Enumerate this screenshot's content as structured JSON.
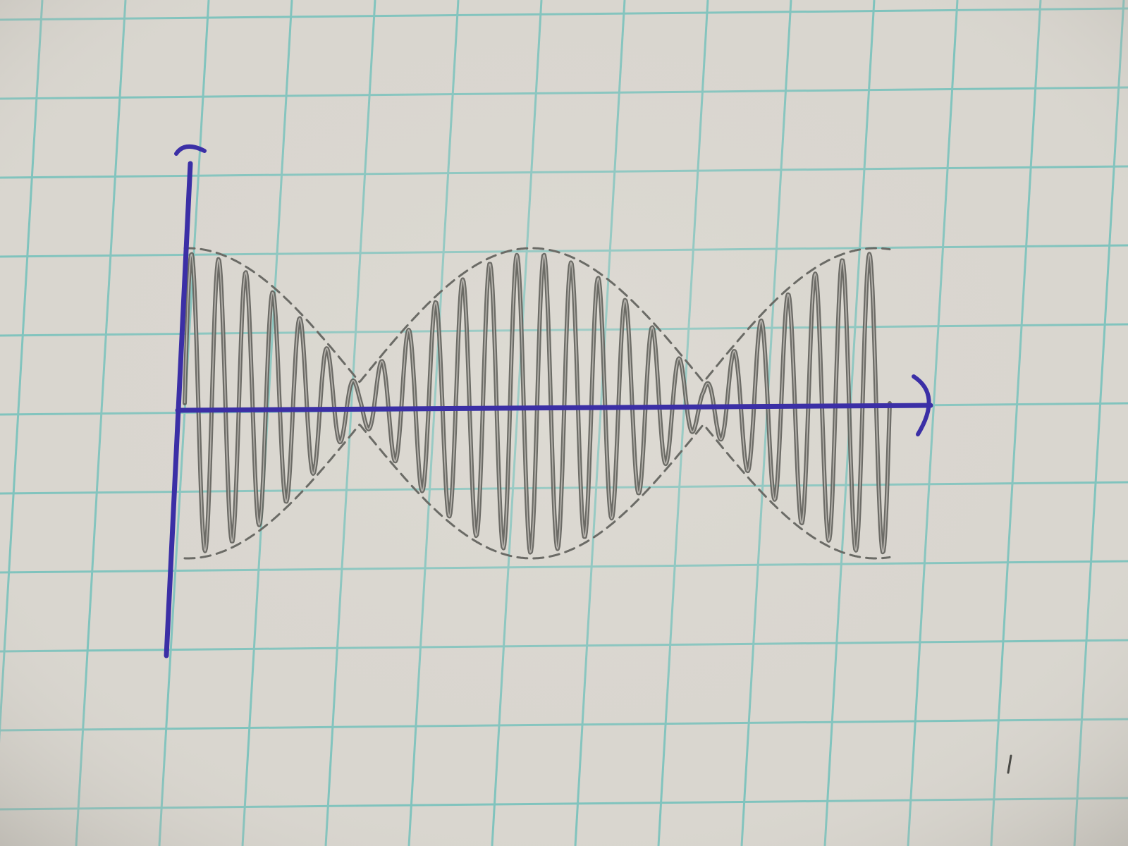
{
  "paper": {
    "background": "#d9d6cf",
    "grid_color": "#7fc3bd",
    "shade_color": "#b8b4ab"
  },
  "sketch": {
    "axis_color": "#3b2fa6",
    "pencil_color": "#5a5a55",
    "wave_cycles": 26,
    "beat_envelope": "cosine",
    "envelope_style": "dashed",
    "y_axis_label": "",
    "x_axis_label": ""
  }
}
